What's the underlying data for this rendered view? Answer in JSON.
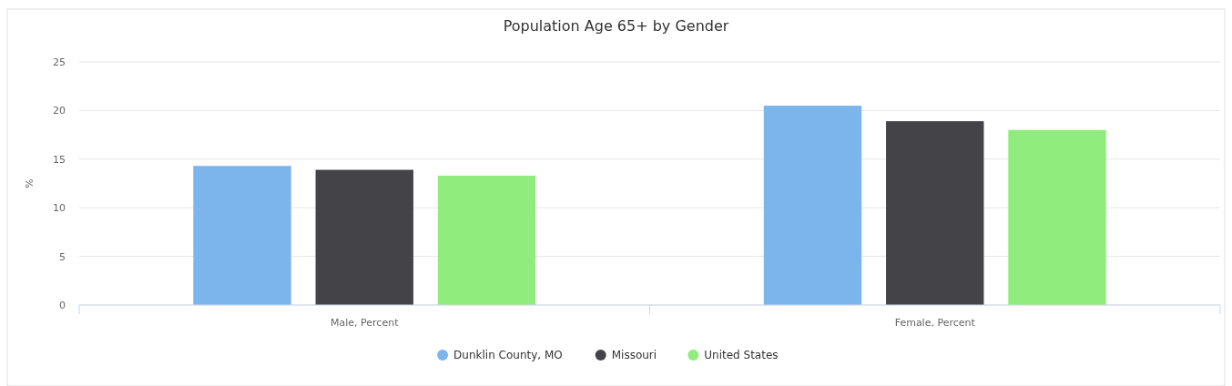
{
  "chart_data": {
    "type": "bar",
    "title": "Population Age 65+ by Gender",
    "ylabel": "%",
    "categories": [
      "Male, Percent",
      "Female, Percent"
    ],
    "series": [
      {
        "name": "Dunklin County, MO",
        "color": "#7cb5ec",
        "values": [
          14.3,
          20.5
        ]
      },
      {
        "name": "Missouri",
        "color": "#434348",
        "values": [
          13.9,
          18.9
        ]
      },
      {
        "name": "United States",
        "color": "#90ed7d",
        "values": [
          13.3,
          18.0
        ]
      }
    ],
    "ylim": [
      0,
      25
    ],
    "yticks": [
      0,
      5,
      10,
      15,
      20,
      25
    ],
    "grid": "y",
    "legend": "bottom"
  }
}
